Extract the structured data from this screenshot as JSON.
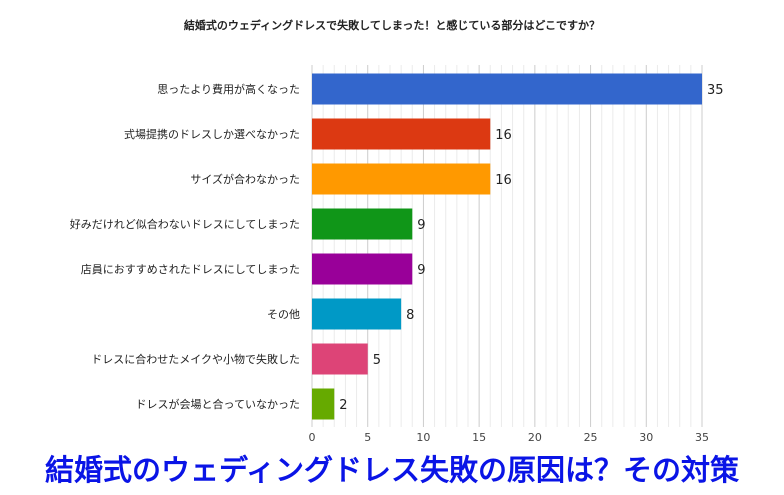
{
  "chart_data": {
    "type": "bar",
    "orientation": "horizontal",
    "title": "結婚式のウェディングドレスで失敗してしまった！と感じている部分はどこですか？",
    "categories": [
      "思ったより費用が高くなった",
      "式場提携のドレスしか選べなかった",
      "サイズが合わなかった",
      "好みだけれど似合わないドレスにしてしまった",
      "店員におすすめされたドレスにしてしまった",
      "その他",
      "ドレスに合わせたメイクや小物で失敗した",
      "ドレスが会場と合っていなかった"
    ],
    "values": [
      35,
      16,
      16,
      9,
      9,
      8,
      5,
      2
    ],
    "colors": [
      "#3366cc",
      "#dc3912",
      "#ff9900",
      "#109618",
      "#990099",
      "#0099c6",
      "#dd4477",
      "#66aa00"
    ],
    "xlim": [
      0,
      35
    ],
    "xticks": [
      0,
      5,
      10,
      15,
      20,
      25,
      30,
      35
    ],
    "grid": true,
    "legend": "none"
  },
  "overlay_caption": "結婚式のウェディングドレス失敗の原因は？その対策"
}
